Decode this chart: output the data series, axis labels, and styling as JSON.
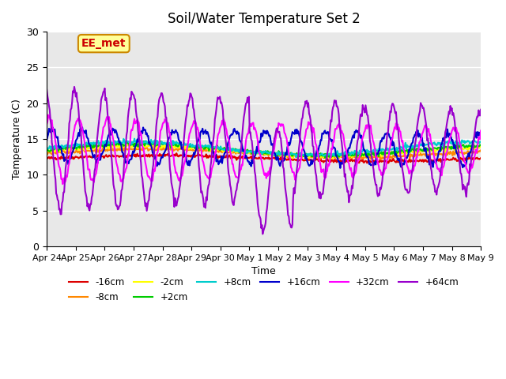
{
  "title": "Soil/Water Temperature Set 2",
  "xlabel": "Time",
  "ylabel": "Temperature (C)",
  "ylim": [
    0,
    30
  ],
  "yticks": [
    0,
    5,
    10,
    15,
    20,
    25,
    30
  ],
  "bg_color": "#e8e8e8",
  "annotation_text": "EE_met",
  "annotation_bg": "#ffff99",
  "annotation_border": "#cc8800",
  "annotation_text_color": "#cc0000",
  "x_labels": [
    "Apr 24",
    "Apr 25",
    "Apr 26",
    "Apr 27",
    "Apr 28",
    "Apr 29",
    "Apr 30",
    "May 1",
    "May 2",
    "May 3",
    "May 4",
    "May 5",
    "May 6",
    "May 7",
    "May 8",
    "May 9"
  ],
  "series": {
    "-16cm": {
      "color": "#dd0000",
      "lw": 1.5
    },
    "-8cm": {
      "color": "#ff8800",
      "lw": 1.5
    },
    "-2cm": {
      "color": "#ffff00",
      "lw": 1.5
    },
    "+2cm": {
      "color": "#00cc00",
      "lw": 1.5
    },
    "+8cm": {
      "color": "#00cccc",
      "lw": 1.5
    },
    "+16cm": {
      "color": "#0000cc",
      "lw": 1.5
    },
    "+32cm": {
      "color": "#ff00ff",
      "lw": 1.5
    },
    "+64cm": {
      "color": "#9900cc",
      "lw": 1.5
    }
  },
  "legend_entries": [
    [
      "-16cm",
      "#dd0000"
    ],
    [
      "-8cm",
      "#ff8800"
    ],
    [
      "-2cm",
      "#ffff00"
    ],
    [
      "+2cm",
      "#00cc00"
    ],
    [
      "+8cm",
      "#00cccc"
    ],
    [
      "+16cm",
      "#0000cc"
    ],
    [
      "+32cm",
      "#ff00ff"
    ],
    [
      "+64cm",
      "#9900cc"
    ]
  ]
}
